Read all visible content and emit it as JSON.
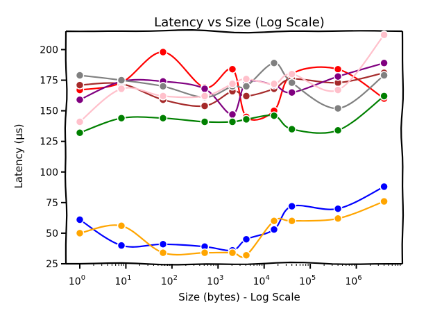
{
  "chart_data": {
    "type": "line",
    "title": "Latency vs Size (Log Scale)",
    "xlabel": "Size (bytes) - Log Scale",
    "ylabel": "Latency (µs)",
    "x_scale": "log",
    "xlim": [
      0.5,
      10000000
    ],
    "ylim": [
      25,
      215
    ],
    "x_ticks": [
      {
        "value": 1,
        "base": "10",
        "exp": "0"
      },
      {
        "value": 10,
        "base": "10",
        "exp": "1"
      },
      {
        "value": 100,
        "base": "10",
        "exp": "2"
      },
      {
        "value": 1000,
        "base": "10",
        "exp": "3"
      },
      {
        "value": 10000,
        "base": "10",
        "exp": "4"
      },
      {
        "value": 100000,
        "base": "10",
        "exp": "5"
      },
      {
        "value": 1000000,
        "base": "10",
        "exp": "6"
      }
    ],
    "y_ticks": [
      25,
      50,
      75,
      100,
      125,
      150,
      175,
      200
    ],
    "grid": false,
    "style": "xkcd hand-drawn",
    "x": [
      1,
      8,
      64,
      512,
      2048,
      4096,
      16384,
      40000,
      400000,
      4000000
    ],
    "series": [
      {
        "color": "#ff0000",
        "values": [
          167,
          173,
          198,
          169,
          184,
          145,
          150,
          180,
          184,
          160
        ]
      },
      {
        "color": "#a52a2a",
        "values": [
          171,
          172,
          159,
          154,
          166,
          162,
          168,
          176,
          173,
          181
        ]
      },
      {
        "color": "#800080",
        "values": [
          159,
          174,
          174,
          168,
          147,
          173,
          171,
          165,
          178,
          189
        ]
      },
      {
        "color": "#808080",
        "values": [
          179,
          175,
          170,
          161,
          170,
          170,
          189,
          173,
          152,
          179
        ]
      },
      {
        "color": "#ffc0cb",
        "values": [
          141,
          168,
          162,
          162,
          172,
          176,
          172,
          180,
          167,
          212
        ]
      },
      {
        "color": "#008000",
        "values": [
          132,
          144,
          144,
          141,
          141,
          143,
          146,
          135,
          134,
          162
        ]
      },
      {
        "color": "#0000ff",
        "values": [
          61,
          40,
          41,
          39,
          36,
          45,
          53,
          72,
          70,
          88
        ]
      },
      {
        "color": "#ffa500",
        "values": [
          50,
          56,
          34,
          34,
          34,
          32,
          60,
          60,
          62,
          76
        ]
      }
    ]
  }
}
